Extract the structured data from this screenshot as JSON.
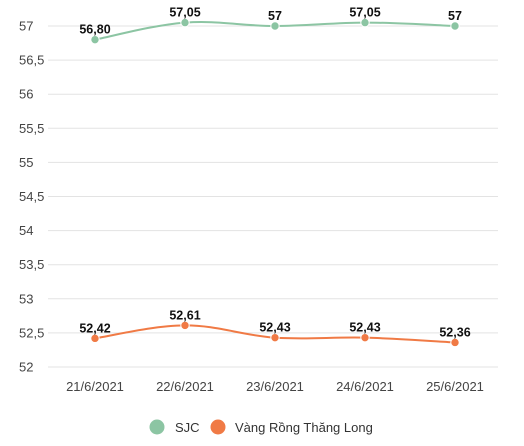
{
  "chart_data": {
    "type": "line",
    "categories": [
      "21/6/2021",
      "22/6/2021",
      "23/6/2021",
      "24/6/2021",
      "25/6/2021"
    ],
    "series": [
      {
        "name": "SJC",
        "values": [
          56.8,
          57.05,
          57,
          57.05,
          57
        ],
        "labels": [
          "56,80",
          "57,05",
          "57",
          "57,05",
          "57"
        ],
        "color": "#8cc5a3"
      },
      {
        "name": "Vàng Rồng Thăng Long",
        "values": [
          52.42,
          52.61,
          52.43,
          52.43,
          52.36
        ],
        "labels": [
          "52,42",
          "52,61",
          "52,43",
          "52,43",
          "52,36"
        ],
        "color": "#f07a45"
      }
    ],
    "yticks": [
      52,
      52.5,
      53,
      53.5,
      54,
      54.5,
      55,
      55.5,
      56,
      56.5,
      57
    ],
    "ytick_labels": [
      "52",
      "52,5",
      "53",
      "53,5",
      "54",
      "54,5",
      "55",
      "55,5",
      "56",
      "56,5",
      "57"
    ],
    "ylim": [
      52,
      57
    ],
    "grid": "horizontal",
    "legend_position": "bottom-center"
  }
}
